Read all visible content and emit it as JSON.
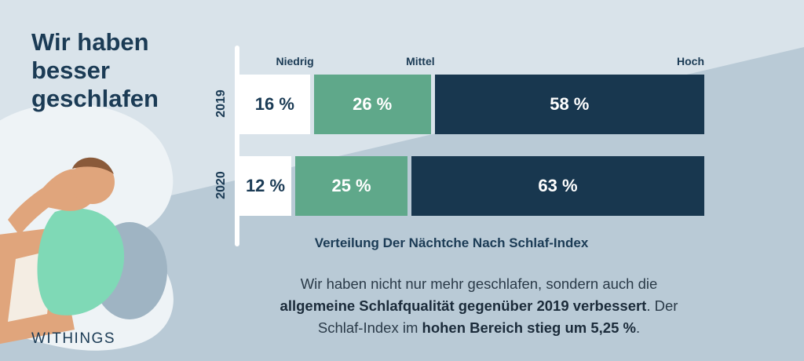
{
  "header": {
    "title_lines": [
      "Wir haben",
      "besser",
      "geschlafen"
    ]
  },
  "brand": {
    "logo_text": "WITHINGS"
  },
  "chart_data": {
    "type": "bar",
    "stacked": true,
    "orientation": "horizontal",
    "categories": [
      "2019",
      "2020"
    ],
    "value_suffix": " %",
    "series": [
      {
        "name": "Niedrig",
        "values": [
          16,
          12
        ],
        "color": "#ffffff",
        "text_color": "#1b3b55"
      },
      {
        "name": "Mittel",
        "values": [
          26,
          25
        ],
        "color": "#5fa88a",
        "text_color": "#ffffff"
      },
      {
        "name": "Hoch",
        "values": [
          58,
          63
        ],
        "color": "#18374f",
        "text_color": "#ffffff"
      }
    ],
    "xlabel": "Verteilung Der Nächtche Nach Schlaf-Index",
    "xlim": [
      0,
      100
    ]
  },
  "description": {
    "part1": "Wir haben nicht nur mehr geschlafen, sondern auch die",
    "bold1": "allgemeine Schlafqualität gegenüber 2019 verbessert",
    "part2": ". Der",
    "part3": "Schlaf-Index im",
    "bold2": "hohen Bereich stieg um 5,25 %",
    "part4": "."
  },
  "colors": {
    "background": "#c9d6e0",
    "navy": "#18374f",
    "green": "#5fa88a",
    "skin": "#e0a57c",
    "hair": "#8a5a3a",
    "shirt": "#7fd9b6"
  }
}
